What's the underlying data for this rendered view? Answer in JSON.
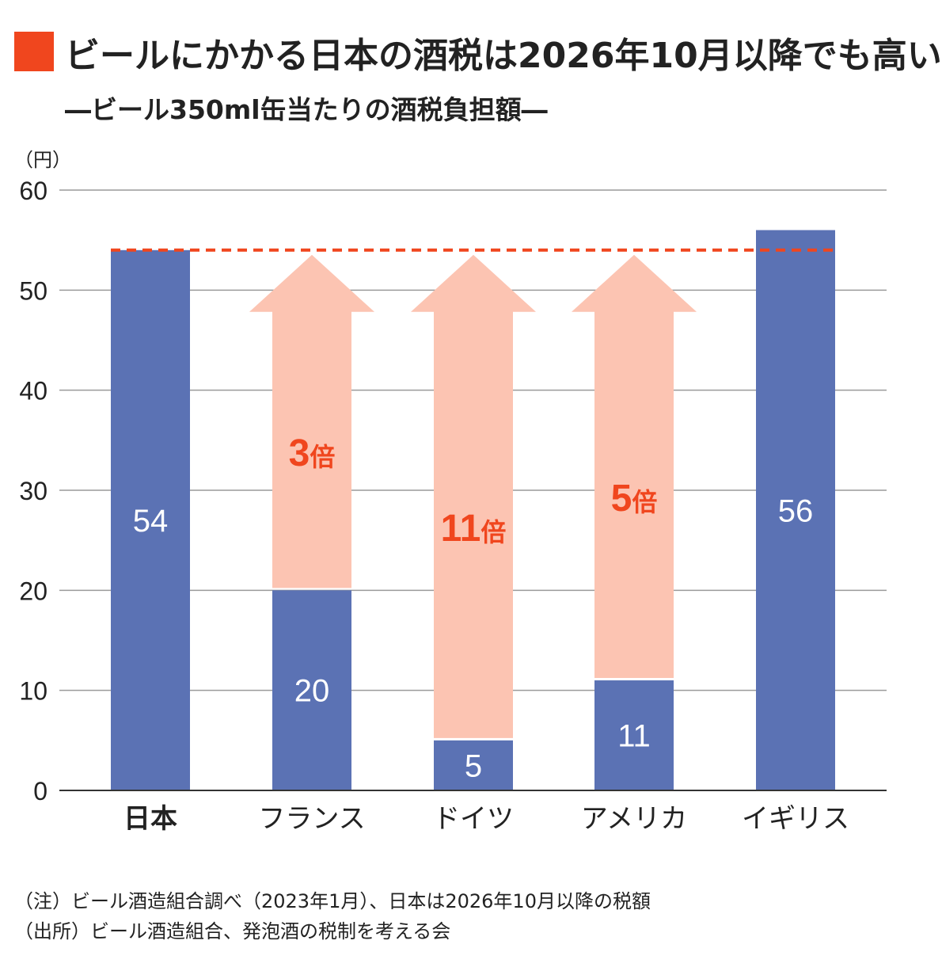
{
  "header": {
    "title": "ビールにかかる日本の酒税は2026年10月以降でも高い",
    "subtitle": "―ビール350ml缶当たりの酒税負担額―"
  },
  "colors": {
    "accent": "#f0461e",
    "bar": "#5b72b4",
    "arrow": "#fcc4b2",
    "grid": "#9a9a9a",
    "axis": "#333333"
  },
  "chart_data": {
    "type": "bar",
    "ylabel": "（円）",
    "ylim": [
      0,
      60
    ],
    "yticks": [
      0,
      10,
      20,
      30,
      40,
      50,
      60
    ],
    "grid": true,
    "categories": [
      "日本",
      "フランス",
      "ドイツ",
      "アメリカ",
      "イギリス"
    ],
    "highlight_category": "日本",
    "values": [
      54,
      20,
      5,
      11,
      56
    ],
    "value_labels": [
      "54",
      "20",
      "5",
      "11",
      "56"
    ],
    "reference_line": 54,
    "arrows": [
      {
        "category": "フランス",
        "from": 20,
        "to": 54,
        "number": "3",
        "unit": "倍"
      },
      {
        "category": "ドイツ",
        "from": 5,
        "to": 54,
        "number": "11",
        "unit": "倍"
      },
      {
        "category": "アメリカ",
        "from": 11,
        "to": 54,
        "number": "5",
        "unit": "倍"
      }
    ]
  },
  "notes": [
    "（注）ビール酒造組合調べ（2023年1月）、日本は2026年10月以降の税額",
    "（出所）ビール酒造組合、発泡酒の税制を考える会"
  ]
}
